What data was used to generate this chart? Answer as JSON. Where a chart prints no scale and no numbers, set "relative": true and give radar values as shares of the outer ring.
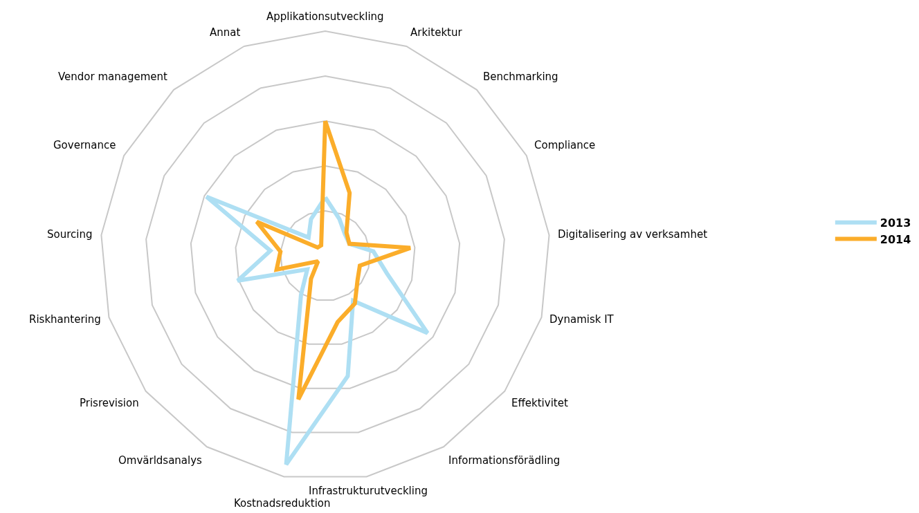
{
  "chart_data": {
    "type": "radar",
    "relative": true,
    "legend": "right",
    "line_style": "solid",
    "marker": "none",
    "categories": [
      "Applikationsutveckling",
      "Arkitektur",
      "Benchmarking",
      "Compliance",
      "Digitalisering av verksamhet",
      "Dynamisk IT",
      "Effektivitet",
      "Informationsförädling",
      "Infrastrukturutveckling",
      "Kostnadsreduktion",
      "Omvärldsanalys",
      "Prisrevision",
      "Riskhantering",
      "Sourcing",
      "Governance",
      "Vendor management",
      "Annat"
    ],
    "series": [
      {
        "name": "2013",
        "color": "#aedff3",
        "values": [
          0.26,
          0.175,
          0.13,
          0.12,
          0.215,
          0.285,
          0.57,
          0.235,
          0.545,
          0.945,
          0.205,
          0.1,
          0.405,
          0.245,
          0.59,
          0.11,
          0.175
        ]
      },
      {
        "name": "2014",
        "color": "#fbad2a",
        "values": [
          0.6,
          0.3,
          0.14,
          0.12,
          0.38,
          0.16,
          0.18,
          0.25,
          0.3,
          0.65,
          0.12,
          0.04,
          0.225,
          0.2,
          0.34,
          0.05,
          0.05
        ]
      }
    ]
  }
}
